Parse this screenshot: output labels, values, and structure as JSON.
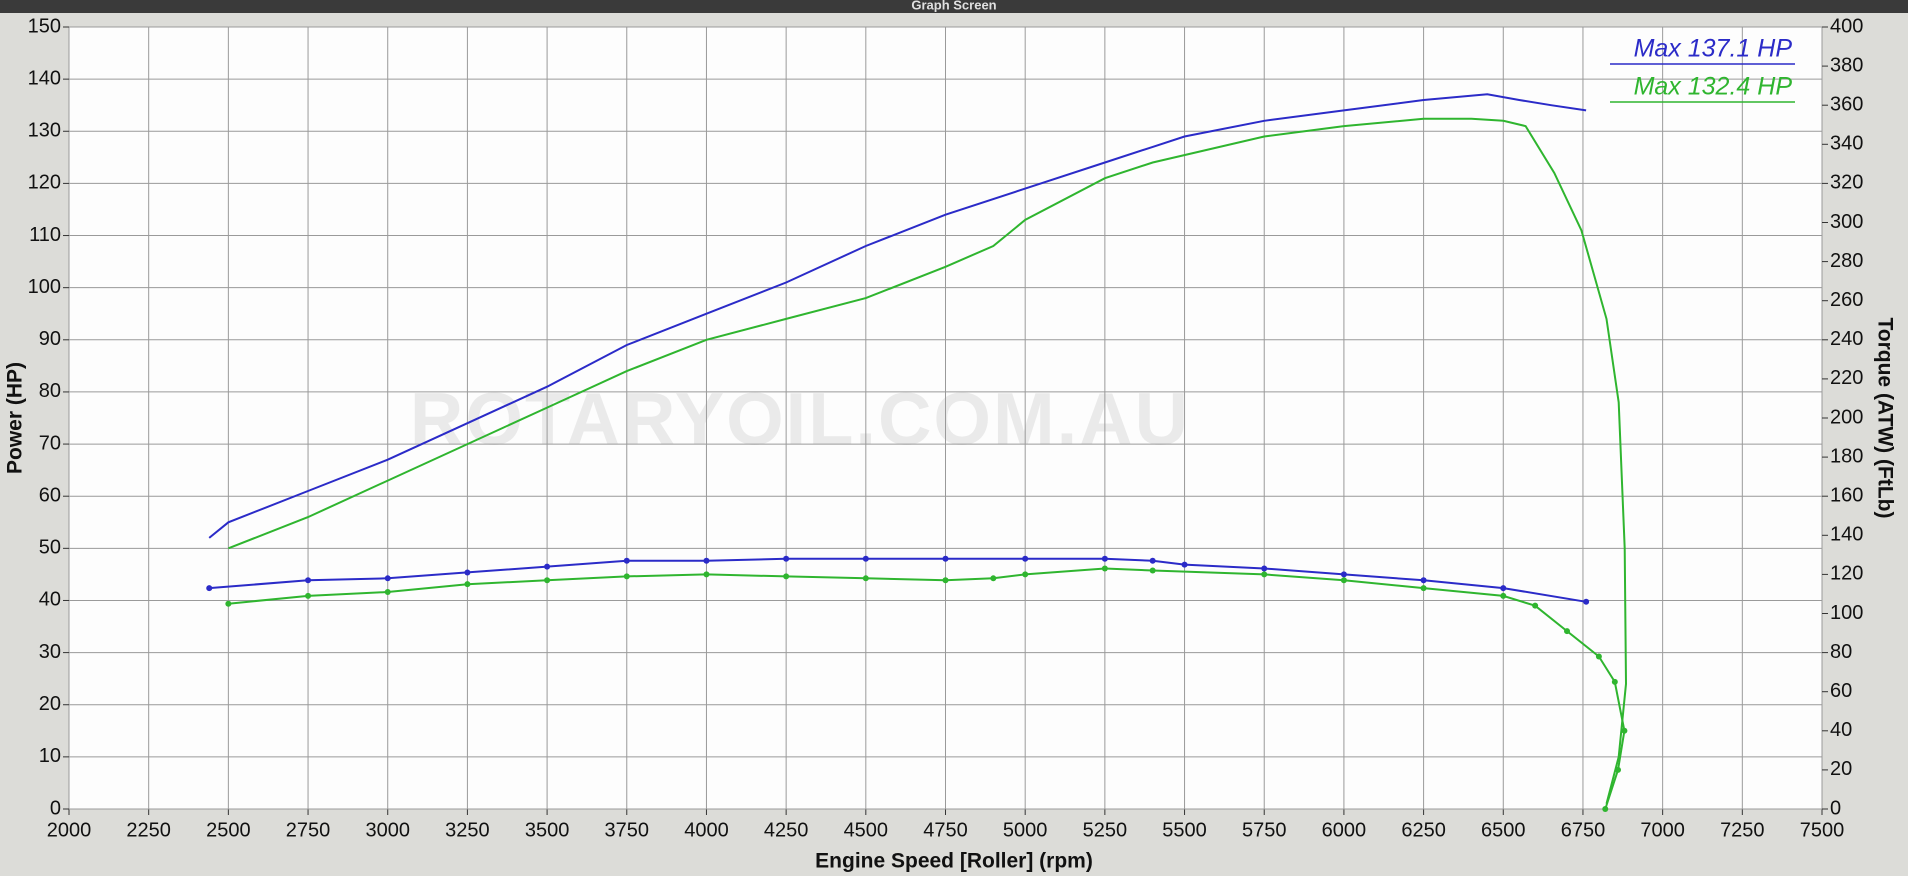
{
  "chart_data": {
    "type": "line",
    "title": "Graph Screen",
    "x_label": "Engine Speed [Roller] (rpm)",
    "y_label": "Power (HP)",
    "y2_label": "Torque (ATW) (FtLb)",
    "watermark": "ROTARYOIL.COM.AU",
    "annotations": [
      {
        "text": "Max 137.1 HP",
        "color": "#2b2bc8"
      },
      {
        "text": "Max 132.4 HP",
        "color": "#2fb52f"
      }
    ],
    "xlim": [
      2000,
      7500
    ],
    "xticks": [
      2000,
      2250,
      2500,
      2750,
      3000,
      3250,
      3500,
      3750,
      4000,
      4250,
      4500,
      4750,
      5000,
      5250,
      5500,
      5750,
      6000,
      6250,
      6500,
      6750,
      7000,
      7250,
      7500
    ],
    "ylim": [
      0,
      150
    ],
    "yticks": [
      0,
      10,
      20,
      30,
      40,
      50,
      60,
      70,
      80,
      90,
      100,
      110,
      120,
      130,
      140,
      150
    ],
    "y2lim": [
      0,
      400
    ],
    "y2ticks": [
      0,
      20,
      40,
      60,
      80,
      100,
      120,
      140,
      160,
      180,
      200,
      220,
      240,
      260,
      280,
      300,
      320,
      340,
      360,
      380,
      400
    ],
    "grid": true,
    "series": [
      {
        "color": "#2b2bc8",
        "axis": "y",
        "x": [
          2440,
          2500,
          2750,
          3000,
          3250,
          3500,
          3750,
          4000,
          4250,
          4500,
          4750,
          5000,
          5250,
          5400,
          5500,
          5750,
          6000,
          6250,
          6450,
          6550,
          6650,
          6760
        ],
        "values": [
          52,
          55,
          61,
          67,
          74,
          81,
          89,
          95,
          101,
          108,
          114,
          119,
          124,
          127,
          129,
          132,
          134,
          136,
          137.1,
          136,
          135,
          134
        ]
      },
      {
        "color": "#2fb52f",
        "axis": "y",
        "x": [
          2500,
          2750,
          3000,
          3250,
          3500,
          3750,
          4000,
          4250,
          4500,
          4750,
          4900,
          5000,
          5250,
          5400,
          5750,
          6000,
          6250,
          6400,
          6500,
          6570,
          6660,
          6745,
          6824,
          6862,
          6881,
          6885,
          6862,
          6824
        ],
        "values": [
          50,
          56,
          63,
          70,
          77,
          84,
          90,
          94,
          98,
          104,
          108,
          113,
          121,
          124,
          129,
          131,
          132.4,
          132.4,
          132,
          131,
          122,
          111,
          94,
          78,
          50,
          24,
          10,
          1
        ]
      },
      {
        "color": "#2b2bc8",
        "axis": "y2",
        "markers": true,
        "x": [
          2440,
          2750,
          3000,
          3250,
          3500,
          3750,
          4000,
          4250,
          4500,
          4750,
          5000,
          5250,
          5400,
          5500,
          5750,
          6000,
          6250,
          6500,
          6760
        ],
        "values": [
          113,
          117,
          118,
          121,
          124,
          127,
          127,
          128,
          128,
          128,
          128,
          128,
          127,
          125,
          123,
          120,
          117,
          113,
          106
        ]
      },
      {
        "color": "#2fb52f",
        "axis": "y2",
        "markers": true,
        "x": [
          2500,
          2750,
          3000,
          3250,
          3500,
          3750,
          4000,
          4250,
          4500,
          4750,
          4900,
          5000,
          5250,
          5400,
          5750,
          6000,
          6250,
          6500,
          6600,
          6700,
          6800,
          6850,
          6880,
          6860,
          6820
        ],
        "values": [
          105,
          109,
          111,
          115,
          117,
          119,
          120,
          119,
          118,
          117,
          118,
          120,
          123,
          122,
          120,
          117,
          113,
          109,
          104,
          91,
          78,
          65,
          40,
          20,
          0
        ]
      }
    ]
  }
}
